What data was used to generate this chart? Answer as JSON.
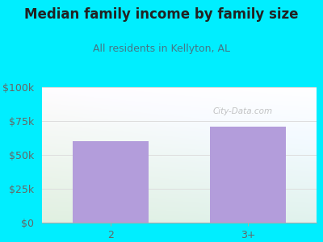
{
  "title": "Median family income by family size",
  "subtitle": "All residents in Kellyton, AL",
  "categories": [
    "2",
    "3+"
  ],
  "values": [
    60000,
    71000
  ],
  "bar_color": "#b39ddb",
  "figure_bg": "#00eeff",
  "plot_bg_topleft": "#d8f0d8",
  "plot_bg_topright": "#f0f8ff",
  "title_color": "#222222",
  "subtitle_color": "#447788",
  "tick_label_color": "#666666",
  "grid_color": "#dddddd",
  "ylim": [
    0,
    100000
  ],
  "yticks": [
    0,
    25000,
    50000,
    75000,
    100000
  ],
  "ytick_labels": [
    "$0",
    "$25k",
    "$50k",
    "$75k",
    "$100k"
  ],
  "watermark": "City-Data.com",
  "title_fontsize": 12,
  "subtitle_fontsize": 9,
  "tick_fontsize": 9,
  "bar_width": 0.55
}
